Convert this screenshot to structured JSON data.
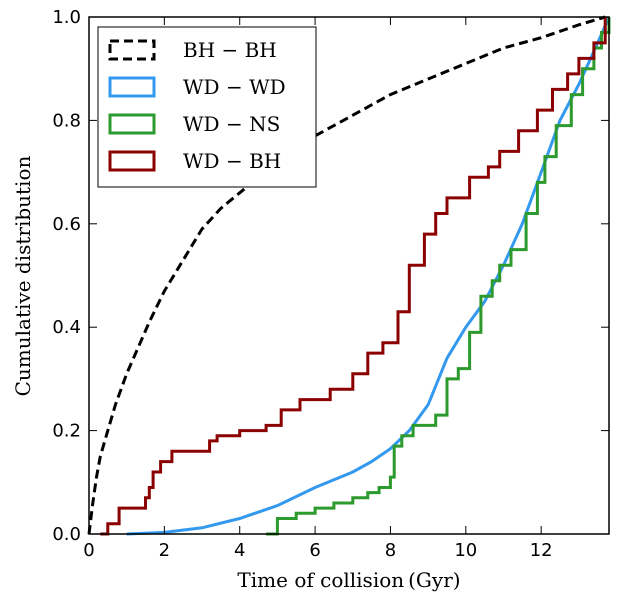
{
  "chart_data": {
    "type": "line",
    "title": "",
    "xlabel": "Time of collision (Gyr)",
    "ylabel": "Cumulative distribution",
    "xlim": [
      0,
      13.8
    ],
    "ylim": [
      0,
      1.0
    ],
    "x_ticks": [
      "0",
      "2",
      "4",
      "6",
      "8",
      "10",
      "12"
    ],
    "y_ticks": [
      "0.0",
      "0.2",
      "0.4",
      "0.6",
      "0.8",
      "1.0"
    ],
    "grid": false,
    "legend_position": "top-left",
    "series": [
      {
        "name": "BH − BH",
        "style": "dashed",
        "color": "#000000",
        "points": [
          [
            0,
            0
          ],
          [
            0.1,
            0.06
          ],
          [
            0.2,
            0.11
          ],
          [
            0.3,
            0.15
          ],
          [
            0.5,
            0.2
          ],
          [
            0.7,
            0.25
          ],
          [
            1.0,
            0.31
          ],
          [
            1.3,
            0.36
          ],
          [
            1.6,
            0.41
          ],
          [
            2.0,
            0.47
          ],
          [
            2.5,
            0.53
          ],
          [
            3.0,
            0.59
          ],
          [
            3.5,
            0.63
          ],
          [
            4.0,
            0.66
          ],
          [
            5.0,
            0.72
          ],
          [
            6.0,
            0.77
          ],
          [
            7.0,
            0.81
          ],
          [
            8.0,
            0.85
          ],
          [
            9.0,
            0.88
          ],
          [
            10.0,
            0.91
          ],
          [
            11.0,
            0.94
          ],
          [
            12.0,
            0.96
          ],
          [
            13.0,
            0.985
          ],
          [
            13.7,
            1.0
          ]
        ]
      },
      {
        "name": "WD − WD",
        "style": "solid",
        "color": "#3399ee",
        "points": [
          [
            1.0,
            0.0
          ],
          [
            2.0,
            0.003
          ],
          [
            3.0,
            0.012
          ],
          [
            4.0,
            0.03
          ],
          [
            5.0,
            0.055
          ],
          [
            6.0,
            0.09
          ],
          [
            7.0,
            0.12
          ],
          [
            7.5,
            0.14
          ],
          [
            8.0,
            0.165
          ],
          [
            8.5,
            0.2
          ],
          [
            9.0,
            0.25
          ],
          [
            9.5,
            0.34
          ],
          [
            10.0,
            0.4
          ],
          [
            10.5,
            0.45
          ],
          [
            11.0,
            0.52
          ],
          [
            11.5,
            0.6
          ],
          [
            12.0,
            0.7
          ],
          [
            12.5,
            0.8
          ],
          [
            13.0,
            0.87
          ],
          [
            13.5,
            0.95
          ],
          [
            13.8,
            1.0
          ]
        ]
      },
      {
        "name": "WD − NS",
        "style": "step",
        "color": "#2c9a2c",
        "points": [
          [
            4.7,
            0.0
          ],
          [
            5.0,
            0.03
          ],
          [
            5.5,
            0.04
          ],
          [
            6.0,
            0.05
          ],
          [
            6.5,
            0.06
          ],
          [
            7.0,
            0.07
          ],
          [
            7.4,
            0.08
          ],
          [
            7.7,
            0.09
          ],
          [
            8.0,
            0.11
          ],
          [
            8.1,
            0.17
          ],
          [
            8.3,
            0.19
          ],
          [
            8.6,
            0.21
          ],
          [
            9.2,
            0.23
          ],
          [
            9.5,
            0.3
          ],
          [
            9.8,
            0.32
          ],
          [
            10.1,
            0.39
          ],
          [
            10.4,
            0.46
          ],
          [
            10.7,
            0.49
          ],
          [
            10.9,
            0.52
          ],
          [
            11.2,
            0.55
          ],
          [
            11.6,
            0.62
          ],
          [
            11.9,
            0.68
          ],
          [
            12.1,
            0.73
          ],
          [
            12.4,
            0.79
          ],
          [
            12.8,
            0.85
          ],
          [
            13.1,
            0.9
          ],
          [
            13.4,
            0.94
          ],
          [
            13.6,
            0.97
          ],
          [
            13.8,
            1.0
          ]
        ]
      },
      {
        "name": "WD − BH",
        "style": "step",
        "color": "#8b0000",
        "points": [
          [
            0.3,
            0.0
          ],
          [
            0.5,
            0.02
          ],
          [
            0.8,
            0.05
          ],
          [
            1.5,
            0.07
          ],
          [
            1.6,
            0.09
          ],
          [
            1.7,
            0.12
          ],
          [
            1.9,
            0.14
          ],
          [
            2.2,
            0.16
          ],
          [
            3.2,
            0.18
          ],
          [
            3.4,
            0.19
          ],
          [
            4.0,
            0.2
          ],
          [
            4.7,
            0.21
          ],
          [
            5.1,
            0.24
          ],
          [
            5.6,
            0.26
          ],
          [
            6.4,
            0.28
          ],
          [
            7.0,
            0.31
          ],
          [
            7.4,
            0.35
          ],
          [
            7.8,
            0.37
          ],
          [
            8.2,
            0.43
          ],
          [
            8.5,
            0.52
          ],
          [
            8.9,
            0.58
          ],
          [
            9.2,
            0.62
          ],
          [
            9.5,
            0.65
          ],
          [
            10.1,
            0.69
          ],
          [
            10.6,
            0.71
          ],
          [
            10.9,
            0.74
          ],
          [
            11.4,
            0.78
          ],
          [
            11.9,
            0.82
          ],
          [
            12.3,
            0.86
          ],
          [
            12.7,
            0.89
          ],
          [
            13.0,
            0.92
          ],
          [
            13.4,
            0.95
          ],
          [
            13.7,
            1.0
          ]
        ]
      }
    ]
  }
}
